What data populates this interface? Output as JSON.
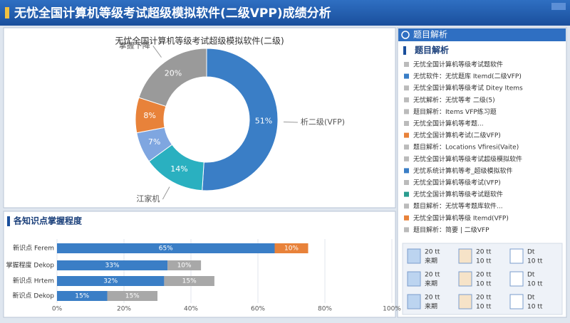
{
  "window": {
    "title": "无忧全国计算机等级考试超级模拟软件(二级VPP)成绩分析"
  },
  "chart_data": [
    {
      "type": "pie",
      "donut": true,
      "title": "无忧全国计算机等级考试超级模拟软件(二级)",
      "categories": [
        "析二级(VFP)",
        "江家机",
        null,
        null,
        "掌握下降"
      ],
      "values": [
        51,
        14,
        7,
        8,
        20
      ],
      "value_labels": [
        "51%",
        "14%",
        "7%",
        "8%",
        "20%"
      ],
      "colors": [
        "#3a7ec6",
        "#2ab0c0",
        "#7fa6e0",
        "#e8823a",
        "#9a9a9a"
      ]
    },
    {
      "type": "bar",
      "orientation": "horizontal",
      "stacked": true,
      "title": "各知识点掌握程度",
      "categories": [
        "新识点 Ferem",
        "掌握程度 Dekop",
        "新识点 Hrtem",
        "新识点 Dekop"
      ],
      "series": [
        {
          "color": "#3a7ec6",
          "values": [
            65,
            33,
            32,
            15
          ],
          "value_labels": [
            "65%",
            "33%",
            "32%",
            "15%"
          ]
        },
        {
          "colors": [
            "#e8823a",
            "#a8a8a8",
            "#a8a8a8",
            "#a8a8a8"
          ],
          "values": [
            10,
            10,
            15,
            15
          ],
          "value_labels": [
            "10%",
            "10%",
            "15%",
            "15%"
          ]
        }
      ],
      "xlim": [
        0,
        100
      ],
      "xticks": [
        {
          "value": 0,
          "label": "0%"
        },
        {
          "value": 20,
          "label": "20%"
        },
        {
          "value": 40,
          "label": "40%"
        },
        {
          "value": 60,
          "label": "60%"
        },
        {
          "value": 80,
          "label": "80%"
        },
        {
          "value": 100,
          "label": "100%"
        }
      ],
      "grid": true
    }
  ],
  "panel": {
    "header": "题目解析",
    "subheader": "题目解析",
    "items": [
      {
        "text": "无忧全国计算机等级考试题软件",
        "color": "#bbbbbb"
      },
      {
        "text": "无忧软件：无忧题库 Itemd(二级VFP)",
        "color": "#3a7ec6"
      },
      {
        "text": "无忧全国计算机等级考试 Ditey Items",
        "color": "#bbbbbb"
      },
      {
        "text": "无忧解析：无忧等考 二级(5)",
        "color": "#bbbbbb"
      },
      {
        "text": "题目解析：Items VFP练习题",
        "color": "#bbbbbb"
      },
      {
        "text": "无忧全国计算机等考题...",
        "color": "#bbbbbb"
      },
      {
        "text": "无忧全国计算机考试(二级VFP)",
        "color": "#e8823a"
      },
      {
        "text": "题目解析：Locations Vfiresi(Vaite)",
        "color": "#bbbbbb"
      },
      {
        "text": "无忧全国计算机等级考试超级模拟软件",
        "color": "#bbbbbb"
      },
      {
        "text": "无忧系统计算机等考_超级模拟软件",
        "color": "#3a7ec6"
      },
      {
        "text": "无忧全国计算机等级考试(VFP)",
        "color": "#bbbbbb"
      },
      {
        "text": "无忧全国计算机等级考试题软件",
        "color": "#2a9d8f"
      },
      {
        "text": "题目解析：无忧等考题库软件...",
        "color": "#bbbbbb"
      },
      {
        "text": "无忧全国计算机等级 Itemd(VFP)",
        "color": "#e8823a"
      },
      {
        "text": "题目解析：简要 | 二级VFP",
        "color": "#bbbbbb"
      }
    ],
    "tiles": [
      {
        "top": "20 tt",
        "bottom": "来期"
      },
      {
        "top": "20 tt",
        "bottom": "10 tt"
      },
      {
        "top": "Dt",
        "bottom": "10 tt"
      },
      {
        "top": "20 tt",
        "bottom": "来期"
      },
      {
        "top": "20 tt",
        "bottom": "10 tt"
      },
      {
        "top": "Dt",
        "bottom": "10 tt"
      },
      {
        "top": "20 tt",
        "bottom": "来期"
      },
      {
        "top": "20 tt",
        "bottom": "10 tt"
      },
      {
        "top": "Dt",
        "bottom": "10 tt"
      }
    ]
  }
}
